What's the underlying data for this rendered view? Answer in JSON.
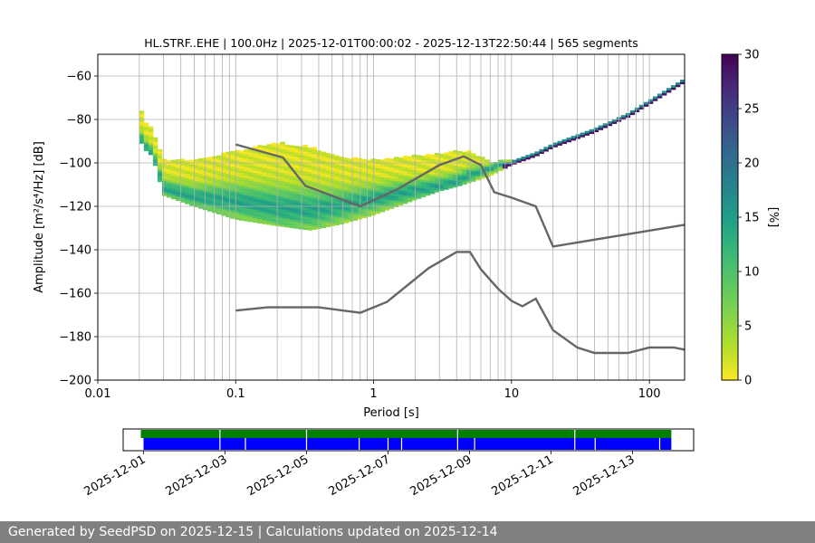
{
  "chart_data": [
    {
      "type": "heatmap",
      "title": "HL.STRF..EHE | 100.0Hz | 2025-12-01T00:00:02 - 2025-12-13T22:50:44 | 565 segments",
      "xlabel": "Period [s]",
      "ylabel": "Amplitude [m²/s⁴/Hz] [dB]",
      "x_scale": "log",
      "xlim": [
        0.01,
        180
      ],
      "ylim": [
        -200,
        -50
      ],
      "xticks": [
        "0.01",
        "0.1",
        "1",
        "10",
        "100"
      ],
      "yticks": [
        "−60",
        "−80",
        "−100",
        "−120",
        "−140",
        "−160",
        "−180",
        "−200"
      ],
      "grid": true,
      "colorbar": {
        "label": "[%]",
        "min": 0,
        "max": 30,
        "ticks": [
          "0",
          "5",
          "10",
          "15",
          "20",
          "25",
          "30"
        ],
        "colormap": "viridis_r"
      },
      "psd_density_band": {
        "period": [
          0.02,
          0.022,
          0.025,
          0.03,
          0.05,
          0.1,
          0.2,
          0.35,
          0.6,
          1,
          2,
          3,
          4,
          5,
          7,
          10,
          15,
          20,
          40,
          70,
          100,
          180
        ],
        "upper_db": [
          -74,
          -81,
          -85,
          -99,
          -99,
          -95,
          -91,
          -93,
          -98,
          -99,
          -97,
          -96,
          -95,
          -95,
          -100,
          -99,
          -95,
          -91,
          -84,
          -77,
          -71,
          -61
        ],
        "lower_db": [
          -89,
          -94,
          -97,
          -115,
          -120,
          -126,
          -129,
          -131,
          -128,
          -124,
          -117,
          -113,
          -111,
          -109,
          -106,
          -101,
          -95,
          -91,
          -84,
          -77,
          -71,
          -61
        ],
        "mode_db": [
          -88,
          -93,
          -96,
          -112,
          -116,
          -118,
          -121,
          -122,
          -120,
          -117,
          -113,
          -111,
          -109,
          -106,
          -103,
          -99,
          -94,
          -90,
          -83,
          -76,
          -70,
          -60
        ]
      },
      "series": [
        {
          "name": "",
          "color": "#666666",
          "x": [
            0.1,
            0.22,
            0.32,
            0.8,
            1.5,
            3,
            4.5,
            6,
            7.5,
            10,
            15,
            20,
            180
          ],
          "y": [
            -91.5,
            -97.5,
            -110.5,
            -120,
            -112,
            -101,
            -97,
            -101,
            -113.5,
            -116,
            -120,
            -138.5,
            -128.5
          ]
        },
        {
          "name": "",
          "color": "#666666",
          "x": [
            0.1,
            0.17,
            0.4,
            0.8,
            1.25,
            2.5,
            4,
            5,
            6,
            8,
            10,
            12,
            15,
            20,
            30,
            40,
            70,
            100,
            150,
            180
          ],
          "y": [
            -168,
            -166.5,
            -166.5,
            -169,
            -164,
            -148.5,
            -141,
            -141,
            -149,
            -158,
            -163.5,
            -166,
            -162.5,
            -177,
            -185,
            -187.5,
            -187.5,
            -185,
            -185,
            -186
          ]
        }
      ]
    },
    {
      "type": "timeline",
      "xlim": [
        "2025-11-30T12:00",
        "2025-12-14T12:00"
      ],
      "xticks": [
        "2025-12-01",
        "2025-12-03",
        "2025-12-05",
        "2025-12-07",
        "2025-12-09",
        "2025-12-11",
        "2025-12-13"
      ],
      "data_color": "#008000",
      "segments_color": "#0000ff",
      "data_start": "2025-12-01T00:00:02",
      "data_end": "2025-12-13T22:50:44",
      "data_gaps": [
        "2025-12-02T21:00",
        "2025-12-05T00:00",
        "2025-12-08T17:00",
        "2025-12-11T14:00"
      ],
      "segment_gaps": [
        "2025-12-02T21:00",
        "2025-12-03T12:00",
        "2025-12-05T00:00",
        "2025-12-06T07:00",
        "2025-12-07T00:00",
        "2025-12-07T08:00",
        "2025-12-08T17:00",
        "2025-12-09T03:00",
        "2025-12-11T14:00",
        "2025-12-12T02:00",
        "2025-12-13T16:00"
      ]
    }
  ],
  "footer": {
    "text": "Generated by SeedPSD on 2025-12-15 | Calculations updated on 2025-12-14"
  }
}
